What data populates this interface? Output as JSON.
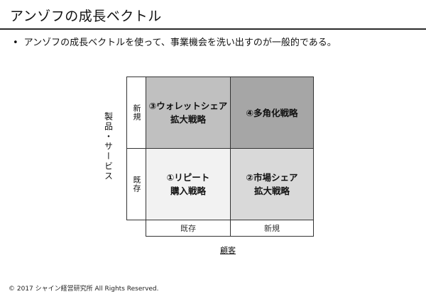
{
  "slide": {
    "title": "アンゾフの成長ベクトル",
    "bullet_symbol": "•",
    "bullet_text": "アンゾフの成長ベクトルを使って、事業機会を洗い出すのが一般的である。"
  },
  "matrix": {
    "y_axis_label": "製品・サービス",
    "x_axis_label": "顧客",
    "row_labels": [
      "新規",
      "既存"
    ],
    "col_labels": [
      "既存",
      "新規"
    ],
    "quadrants": {
      "top_left": "③ウォレットシェア\n拡大戦略",
      "top_right": "④多角化戦略",
      "bottom_left": "①リピート\n購入戦略",
      "bottom_right": "②市場シェア\n拡大戦略"
    },
    "colors": {
      "top_left": "#c0c0c0",
      "top_right": "#a6a6a6",
      "bottom_left": "#f2f2f2",
      "bottom_right": "#d9d9d9"
    }
  },
  "footer": {
    "copyright": "© 2017 シャイン経営研究所 All Rights Reserved."
  }
}
